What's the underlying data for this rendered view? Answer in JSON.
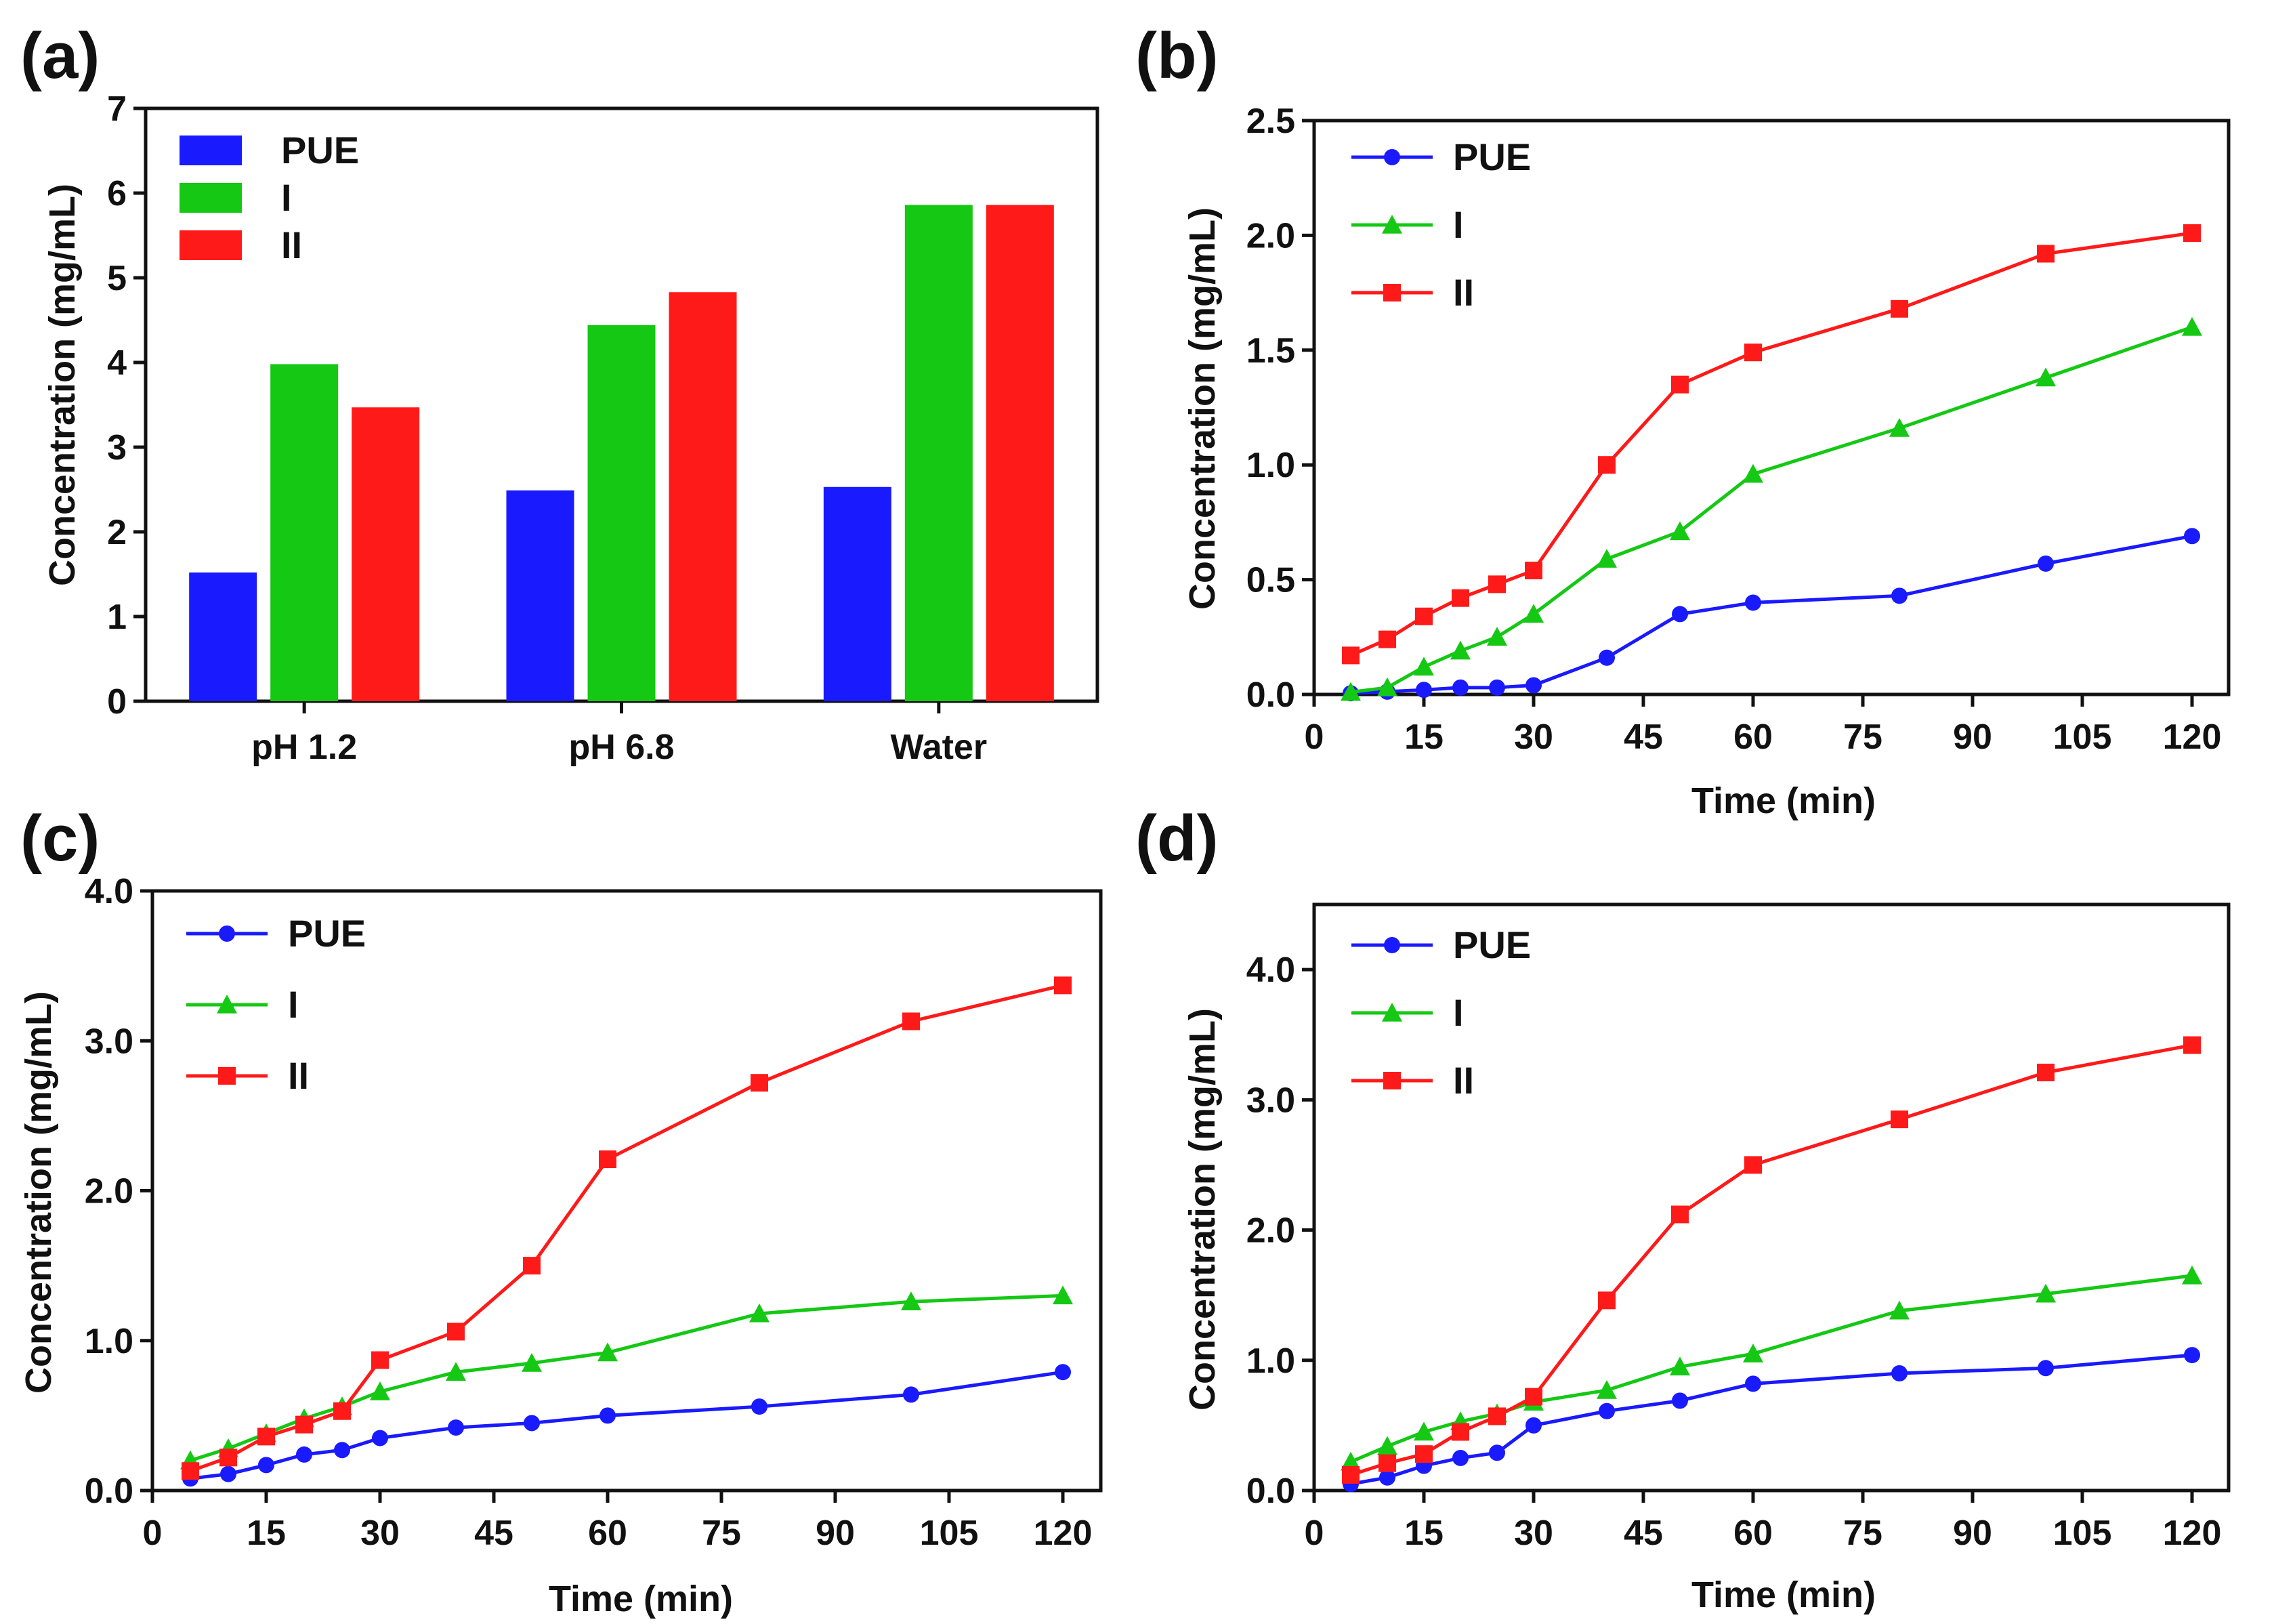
{
  "colors": {
    "PUE": "#1a1aff",
    "I": "#14c814",
    "II": "#ff1a1a",
    "axis": "#111111"
  },
  "chart_data": [
    {
      "panel": "(a)",
      "type": "bar",
      "ylabel": "Concentration (mg/mL)",
      "xlabel": "",
      "ylim": [
        0,
        7
      ],
      "yticks": [
        "0",
        "1",
        "2",
        "3",
        "4",
        "5",
        "6",
        "7"
      ],
      "categories": [
        "pH 1.2",
        "pH 6.8",
        "Water"
      ],
      "legend_position": "top-left",
      "series": [
        {
          "name": "PUE",
          "values": [
            1.52,
            2.49,
            2.53
          ]
        },
        {
          "name": "I",
          "values": [
            3.98,
            4.44,
            5.86
          ]
        },
        {
          "name": "II",
          "values": [
            3.47,
            4.83,
            5.86
          ]
        }
      ]
    },
    {
      "panel": "(b)",
      "type": "line",
      "ylabel": "Concentration (mg/mL)",
      "xlabel": "Time (min)",
      "xlim": [
        0,
        125
      ],
      "ylim": [
        0,
        2.5
      ],
      "xticks": [
        "0",
        "15",
        "30",
        "45",
        "60",
        "75",
        "90",
        "105",
        "120"
      ],
      "yticks": [
        "0.0",
        "0.5",
        "1.0",
        "1.5",
        "2.0",
        "2.5"
      ],
      "legend_position": "top-left",
      "x": [
        5,
        10,
        15,
        20,
        25,
        30,
        40,
        50,
        60,
        80,
        100,
        120
      ],
      "series": [
        {
          "name": "PUE",
          "marker": "circle",
          "values": [
            0.005,
            0.012,
            0.02,
            0.03,
            0.03,
            0.04,
            0.16,
            0.35,
            0.4,
            0.43,
            0.57,
            0.69
          ]
        },
        {
          "name": "I",
          "marker": "triangle",
          "values": [
            0.01,
            0.03,
            0.12,
            0.19,
            0.25,
            0.35,
            0.59,
            0.71,
            0.96,
            1.16,
            1.38,
            1.6
          ]
        },
        {
          "name": "II",
          "marker": "square",
          "values": [
            0.17,
            0.24,
            0.34,
            0.42,
            0.48,
            0.54,
            1.0,
            1.35,
            1.49,
            1.68,
            1.92,
            2.01
          ]
        }
      ]
    },
    {
      "panel": "(c)",
      "type": "line",
      "ylabel": "Concentration (mg/mL)",
      "xlabel": "Time (min)",
      "xlim": [
        0,
        125
      ],
      "ylim": [
        0,
        4.0
      ],
      "xticks": [
        "0",
        "15",
        "30",
        "45",
        "60",
        "75",
        "90",
        "105",
        "120"
      ],
      "yticks": [
        "0.0",
        "1.0",
        "2.0",
        "3.0",
        "4.0"
      ],
      "legend_position": "top-left",
      "x": [
        5,
        10,
        15,
        20,
        25,
        30,
        40,
        50,
        60,
        80,
        100,
        120
      ],
      "series": [
        {
          "name": "PUE",
          "marker": "circle",
          "values": [
            0.08,
            0.11,
            0.17,
            0.24,
            0.27,
            0.35,
            0.42,
            0.45,
            0.5,
            0.56,
            0.64,
            0.79
          ]
        },
        {
          "name": "I",
          "marker": "triangle",
          "values": [
            0.2,
            0.28,
            0.38,
            0.48,
            0.56,
            0.66,
            0.79,
            0.85,
            0.92,
            1.18,
            1.26,
            1.3
          ]
        },
        {
          "name": "II",
          "marker": "square",
          "values": [
            0.13,
            0.22,
            0.36,
            0.44,
            0.53,
            0.87,
            1.06,
            1.5,
            2.21,
            2.72,
            3.13,
            3.37
          ]
        }
      ]
    },
    {
      "panel": "(d)",
      "type": "line",
      "ylabel": "Concentration (mg/mL)",
      "xlabel": "Time (min)",
      "xlim": [
        0,
        125
      ],
      "ylim": [
        0,
        4.5
      ],
      "xticks": [
        "0",
        "15",
        "30",
        "45",
        "60",
        "75",
        "90",
        "105",
        "120"
      ],
      "yticks": [
        "0.0",
        "1.0",
        "2.0",
        "3.0",
        "4.0"
      ],
      "ytick_values": [
        0,
        1,
        2,
        3,
        4
      ],
      "legend_position": "top-left",
      "x": [
        5,
        10,
        15,
        20,
        25,
        30,
        40,
        50,
        60,
        80,
        100,
        120
      ],
      "series": [
        {
          "name": "PUE",
          "marker": "circle",
          "values": [
            0.05,
            0.1,
            0.19,
            0.25,
            0.29,
            0.5,
            0.61,
            0.69,
            0.82,
            0.9,
            0.94,
            1.04
          ]
        },
        {
          "name": "I",
          "marker": "triangle",
          "values": [
            0.22,
            0.34,
            0.45,
            0.53,
            0.59,
            0.68,
            0.77,
            0.95,
            1.05,
            1.38,
            1.51,
            1.65
          ]
        },
        {
          "name": "II",
          "marker": "square",
          "values": [
            0.12,
            0.21,
            0.28,
            0.45,
            0.57,
            0.72,
            1.46,
            2.12,
            2.5,
            2.85,
            3.21,
            3.42
          ]
        }
      ]
    }
  ]
}
